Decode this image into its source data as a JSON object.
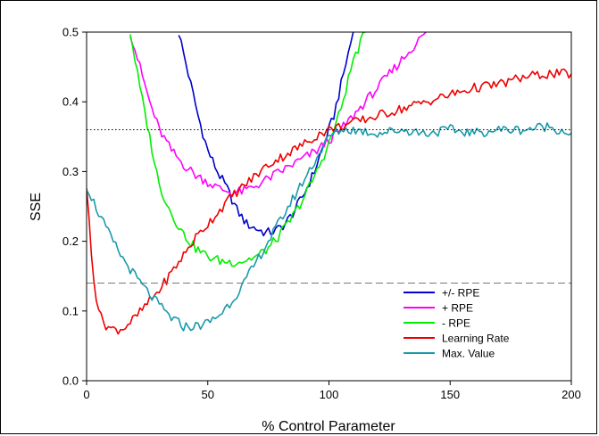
{
  "chart_data": {
    "type": "line",
    "title": "",
    "xlabel": "% Control Parameter",
    "ylabel": "SSE",
    "xlim": [
      0,
      200
    ],
    "ylim": [
      0,
      0.5
    ],
    "xticks": [
      "0",
      "50",
      "100",
      "150",
      "200"
    ],
    "yticks": [
      "0.0",
      "0.1",
      "0.2",
      "0.3",
      "0.4",
      "0.5"
    ],
    "grid": false,
    "legend_position": "bottom-right",
    "reference_lines": [
      {
        "style": "dotted",
        "y": 0.36
      },
      {
        "style": "dashed",
        "y": 0.14
      }
    ],
    "series": [
      {
        "name": "+/- RPE",
        "color": "#0000cc",
        "x": [
          38,
          42,
          46,
          50,
          54,
          58,
          62,
          66,
          70,
          74,
          78,
          82,
          86,
          90,
          94,
          98,
          102,
          106,
          110
        ],
        "y": [
          0.5,
          0.44,
          0.38,
          0.33,
          0.3,
          0.275,
          0.245,
          0.225,
          0.218,
          0.212,
          0.215,
          0.225,
          0.245,
          0.27,
          0.3,
          0.34,
          0.38,
          0.44,
          0.5
        ]
      },
      {
        "name": "+ RPE",
        "color": "#ff00ff",
        "x": [
          18,
          22,
          26,
          30,
          35,
          40,
          45,
          50,
          55,
          60,
          65,
          70,
          75,
          80,
          85,
          90,
          95,
          100,
          105,
          110,
          115,
          120,
          125,
          130,
          135,
          140
        ],
        "y": [
          0.5,
          0.45,
          0.4,
          0.36,
          0.33,
          0.31,
          0.295,
          0.285,
          0.275,
          0.27,
          0.272,
          0.28,
          0.29,
          0.3,
          0.31,
          0.32,
          0.33,
          0.345,
          0.36,
          0.38,
          0.4,
          0.42,
          0.44,
          0.46,
          0.48,
          0.5
        ]
      },
      {
        "name": "- RPE",
        "color": "#00ee00",
        "x": [
          18,
          22,
          26,
          30,
          35,
          40,
          45,
          50,
          55,
          60,
          65,
          70,
          75,
          80,
          85,
          90,
          95,
          100,
          105,
          110,
          115
        ],
        "y": [
          0.5,
          0.42,
          0.35,
          0.28,
          0.24,
          0.21,
          0.19,
          0.178,
          0.172,
          0.17,
          0.172,
          0.178,
          0.19,
          0.21,
          0.235,
          0.265,
          0.3,
          0.34,
          0.39,
          0.46,
          0.5
        ]
      },
      {
        "name": "Learning Rate",
        "color": "#ee0000",
        "x": [
          0,
          2,
          4,
          6,
          8,
          10,
          12,
          15,
          20,
          25,
          30,
          35,
          40,
          45,
          50,
          55,
          60,
          65,
          70,
          75,
          80,
          85,
          90,
          95,
          100,
          110,
          120,
          130,
          140,
          150,
          160,
          170,
          180,
          190,
          200
        ],
        "y": [
          0.28,
          0.18,
          0.12,
          0.09,
          0.08,
          0.075,
          0.073,
          0.075,
          0.09,
          0.11,
          0.13,
          0.155,
          0.18,
          0.205,
          0.225,
          0.245,
          0.265,
          0.28,
          0.295,
          0.31,
          0.32,
          0.33,
          0.34,
          0.352,
          0.36,
          0.37,
          0.38,
          0.39,
          0.4,
          0.41,
          0.42,
          0.425,
          0.435,
          0.44,
          0.44
        ]
      },
      {
        "name": "Max. Value",
        "color": "#1a9aaa",
        "x": [
          0,
          5,
          10,
          15,
          20,
          25,
          30,
          35,
          40,
          45,
          50,
          55,
          60,
          65,
          70,
          75,
          80,
          85,
          90,
          95,
          100,
          105,
          110,
          120,
          130,
          140,
          150,
          160,
          170,
          180,
          190,
          200
        ],
        "y": [
          0.28,
          0.24,
          0.205,
          0.175,
          0.15,
          0.128,
          0.108,
          0.09,
          0.078,
          0.078,
          0.083,
          0.095,
          0.115,
          0.14,
          0.17,
          0.2,
          0.23,
          0.26,
          0.29,
          0.32,
          0.35,
          0.36,
          0.36,
          0.355,
          0.36,
          0.355,
          0.36,
          0.355,
          0.36,
          0.36,
          0.365,
          0.355
        ]
      }
    ]
  }
}
